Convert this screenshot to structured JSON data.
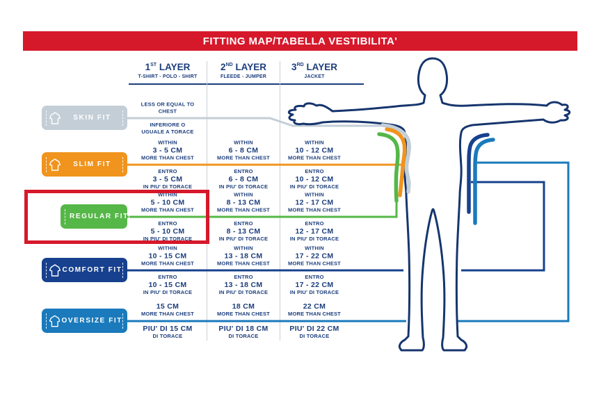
{
  "title": "FITTING MAP/TABELLA VESTIBILITA'",
  "colors": {
    "red": "#d6182b",
    "navy_text": "#1b3d7c",
    "body_outline": "#16356d",
    "divider": "#c9ced4",
    "skin": "#c3ced7",
    "slim": "#f0941d",
    "regular": "#55b747",
    "comfort": "#17418e",
    "oversize": "#1a7abc"
  },
  "layers": [
    {
      "num": "1",
      "ord": "ST",
      "word": "LAYER",
      "sub": "T-SHIRT - POLO - SHIRT"
    },
    {
      "num": "2",
      "ord": "ND",
      "word": "LAYER",
      "sub": "FLEEDE - JUMPER"
    },
    {
      "num": "3",
      "ord": "RD",
      "word": "LAYER",
      "sub": "JACKET"
    }
  ],
  "fits": [
    {
      "label": "SKIN FIT",
      "color_key": "skin",
      "highlighted": false,
      "cells": [
        {
          "en": [
            "LESS OR EQUAL TO",
            "CHEST"
          ],
          "en_big": [],
          "it": [
            "INFERIORE O",
            "UGUALE A TORACE"
          ],
          "it_big": []
        },
        null,
        null
      ]
    },
    {
      "label": "SLIM FIT",
      "color_key": "slim",
      "highlighted": false,
      "cells": [
        {
          "en": [
            "WITHIN",
            "3 - 5 CM",
            "MORE THAN CHEST"
          ],
          "en_big": [
            1
          ],
          "it": [
            "ENTRO",
            "3 - 5 CM",
            "IN PIU' DI TORACE"
          ],
          "it_big": [
            1
          ]
        },
        {
          "en": [
            "WITHIN",
            "6 - 8 CM",
            "MORE THAN CHEST"
          ],
          "en_big": [
            1
          ],
          "it": [
            "ENTRO",
            "6 - 8 CM",
            "IN PIU' DI TORACE"
          ],
          "it_big": [
            1
          ]
        },
        {
          "en": [
            "WITHIN",
            "10 - 12 CM",
            "MORE THAN CHEST"
          ],
          "en_big": [
            1
          ],
          "it": [
            "ENTRO",
            "10 - 12 CM",
            "IN PIU' DI TORACE"
          ],
          "it_big": [
            1
          ]
        }
      ]
    },
    {
      "label": "REGULAR FIT",
      "color_key": "regular",
      "highlighted": true,
      "cells": [
        {
          "en": [
            "WITHIN",
            "5 - 10 CM",
            "MORE THAN CHEST"
          ],
          "en_big": [
            1
          ],
          "it": [
            "ENTRO",
            "5 - 10 CM",
            "IN PIU' DI TORACE"
          ],
          "it_big": [
            1
          ]
        },
        {
          "en": [
            "WITHIN",
            "8 - 13 CM",
            "MORE THAN CHEST"
          ],
          "en_big": [
            1
          ],
          "it": [
            "ENTRO",
            "8 - 13 CM",
            "IN PIU' DI TORACE"
          ],
          "it_big": [
            1
          ]
        },
        {
          "en": [
            "WITHIN",
            "12 - 17 CM",
            "MORE THAN CHEST"
          ],
          "en_big": [
            1
          ],
          "it": [
            "ENTRO",
            "12 - 17 CM",
            "IN PIU' DI TORACE"
          ],
          "it_big": [
            1
          ]
        }
      ]
    },
    {
      "label": "COMFORT FIT",
      "color_key": "comfort",
      "highlighted": false,
      "cells": [
        {
          "en": [
            "WITHIN",
            "10 - 15 CM",
            "MORE THAN CHEST"
          ],
          "en_big": [
            1
          ],
          "it": [
            "ENTRO",
            "10 - 15 CM",
            "IN PIU' DI TORACE"
          ],
          "it_big": [
            1
          ]
        },
        {
          "en": [
            "WITHIN",
            "13 - 18 CM",
            "MORE THAN CHEST"
          ],
          "en_big": [
            1
          ],
          "it": [
            "ENTRO",
            "13 - 18 CM",
            "IN PIU' DI TORACE"
          ],
          "it_big": [
            1
          ]
        },
        {
          "en": [
            "WITHIN",
            "17 - 22 CM",
            "MORE THAN CHEST"
          ],
          "en_big": [
            1
          ],
          "it": [
            "ENTRO",
            "17 - 22 CM",
            "IN PIU' DI TORACE"
          ],
          "it_big": [
            1
          ]
        }
      ]
    },
    {
      "label": "OVERSIZE FIT",
      "color_key": "oversize",
      "highlighted": false,
      "cells": [
        {
          "en": [
            "15 CM",
            "MORE THAN CHEST"
          ],
          "en_big": [
            0
          ],
          "it": [
            "PIU' DI 15 CM",
            "DI TORACE"
          ],
          "it_big": [
            0
          ]
        },
        {
          "en": [
            "18 CM",
            "MORE THAN CHEST"
          ],
          "en_big": [
            0
          ],
          "it": [
            "PIU' DI 18 CM",
            "DI TORACE"
          ],
          "it_big": [
            0
          ]
        },
        {
          "en": [
            "22 CM",
            "MORE THAN CHEST"
          ],
          "en_big": [
            0
          ],
          "it": [
            "PIU' DI 22 CM",
            "DI TORACE"
          ],
          "it_big": [
            0
          ]
        }
      ]
    }
  ]
}
